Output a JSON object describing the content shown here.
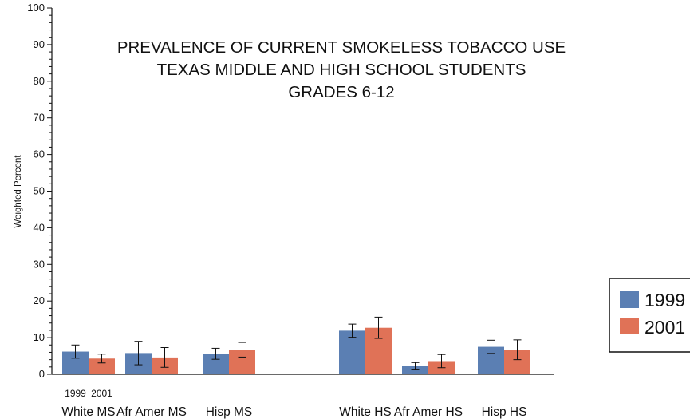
{
  "chart_data": {
    "type": "bar",
    "title_lines": [
      "PREVALENCE OF CURRENT SMOKELESS TOBACCO USE",
      "TEXAS MIDDLE AND HIGH  SCHOOL STUDENTS",
      "GRADES 6-12"
    ],
    "ylabel": "Weighted Percent",
    "xlabel": "",
    "ylim": [
      0,
      100
    ],
    "yticks": [
      0,
      10,
      20,
      30,
      40,
      50,
      60,
      70,
      80,
      90,
      100
    ],
    "categories": [
      "White MS",
      "Afr Amer MS",
      "Hisp MS",
      "White HS",
      "Afr Amer HS",
      "Hisp HS"
    ],
    "year_labels": [
      "1999",
      "2001"
    ],
    "series": [
      {
        "name": "1999",
        "color": "#5b7fb3",
        "values": [
          6.2,
          5.8,
          5.6,
          11.9,
          2.3,
          7.5
        ],
        "error": [
          1.8,
          3.2,
          1.5,
          1.8,
          0.9,
          1.8
        ]
      },
      {
        "name": "2001",
        "color": "#e07257",
        "values": [
          4.3,
          4.6,
          6.7,
          12.7,
          3.6,
          6.7
        ],
        "error": [
          1.2,
          2.7,
          2.0,
          2.9,
          1.8,
          2.7
        ]
      }
    ],
    "legend_position": "right",
    "grid": false
  }
}
